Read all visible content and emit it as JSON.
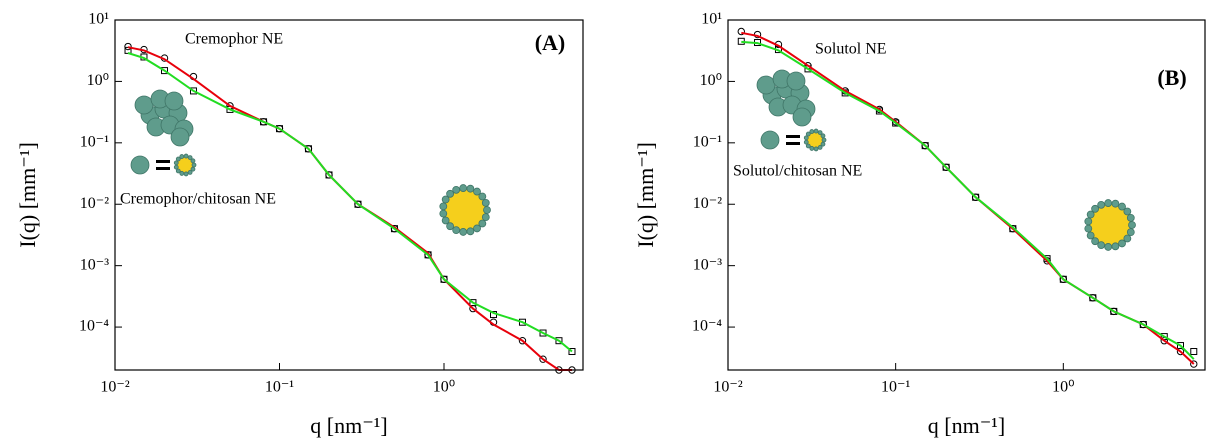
{
  "chart_data": [
    {
      "type": "scatter",
      "title": "(A)",
      "annotations": [
        "Cremophor NE",
        "Cremophor/chitosan NE"
      ],
      "xlabel": "q [nm⁻¹]",
      "ylabel": "I(q) [mm⁻¹]",
      "log_x": true,
      "log_y": true,
      "xlim": [
        0.01,
        7
      ],
      "ylim": [
        2e-05,
        10
      ],
      "xticks": [
        {
          "value": 0.01,
          "label": "10⁻²"
        },
        {
          "value": 0.1,
          "label": "10⁻¹"
        },
        {
          "value": 1,
          "label": "10⁰"
        }
      ],
      "yticks": [
        {
          "value": 0.0001,
          "label": "10⁻⁴"
        },
        {
          "value": 0.001,
          "label": "10⁻³"
        },
        {
          "value": 0.01,
          "label": "10⁻²"
        },
        {
          "value": 0.1,
          "label": "10⁻¹"
        },
        {
          "value": 1,
          "label": "10⁰"
        },
        {
          "value": 10,
          "label": "10¹"
        }
      ],
      "x": [
        0.012,
        0.015,
        0.02,
        0.03,
        0.05,
        0.08,
        0.1,
        0.15,
        0.2,
        0.3,
        0.5,
        0.8,
        1,
        1.5,
        2,
        3,
        4,
        5,
        6
      ],
      "series": [
        {
          "style": "circle",
          "color": "#000000",
          "values": [
            3.7,
            3.3,
            2.4,
            1.2,
            0.4,
            0.22,
            0.17,
            0.08,
            0.03,
            0.01,
            0.004,
            0.0015,
            0.0006,
            0.0002,
            0.00012,
            6e-05,
            3e-05,
            2e-05,
            2e-05
          ]
        },
        {
          "style": "square",
          "color": "#000000",
          "values": [
            3.2,
            2.5,
            1.5,
            0.7,
            0.35,
            0.22,
            0.17,
            0.08,
            0.03,
            0.01,
            0.004,
            0.0015,
            0.0006,
            0.00025,
            0.00016,
            0.00012,
            8e-05,
            6e-05,
            4e-05
          ]
        },
        {
          "style": "line",
          "color": "#e8000b",
          "values": [
            3.6,
            3.2,
            2.3,
            1.1,
            0.4,
            0.22,
            0.17,
            0.08,
            0.03,
            0.01,
            0.0042,
            0.0016,
            0.0006,
            0.0002,
            0.00011,
            6e-05,
            3e-05,
            2e-05,
            2e-05
          ]
        },
        {
          "style": "line",
          "color": "#22dd22",
          "values": [
            2.9,
            2.4,
            1.5,
            0.7,
            0.35,
            0.22,
            0.17,
            0.08,
            0.03,
            0.01,
            0.004,
            0.0015,
            0.0006,
            0.00025,
            0.00017,
            0.00012,
            8e-05,
            6e-05,
            4e-05
          ]
        }
      ]
    },
    {
      "type": "scatter",
      "title": "(B)",
      "annotations": [
        "Solutol NE",
        "Solutol/chitosan NE"
      ],
      "xlabel": "q [nm⁻¹]",
      "ylabel": "I(q) [mm⁻¹]",
      "log_x": true,
      "log_y": true,
      "xlim": [
        0.01,
        7
      ],
      "ylim": [
        2e-05,
        10
      ],
      "xticks": [
        {
          "value": 0.01,
          "label": "10⁻²"
        },
        {
          "value": 0.1,
          "label": "10⁻¹"
        },
        {
          "value": 1,
          "label": "10⁰"
        }
      ],
      "yticks": [
        {
          "value": 0.0001,
          "label": "10⁻⁴"
        },
        {
          "value": 0.001,
          "label": "10⁻³"
        },
        {
          "value": 0.01,
          "label": "10⁻²"
        },
        {
          "value": 0.1,
          "label": "10⁻¹"
        },
        {
          "value": 1,
          "label": "10⁰"
        },
        {
          "value": 10,
          "label": "10¹"
        }
      ],
      "x": [
        0.012,
        0.015,
        0.02,
        0.03,
        0.05,
        0.08,
        0.1,
        0.15,
        0.2,
        0.3,
        0.5,
        0.8,
        1,
        1.5,
        2,
        3,
        4,
        5,
        6
      ],
      "series": [
        {
          "style": "circle",
          "color": "#000000",
          "values": [
            6.5,
            5.8,
            4,
            1.8,
            0.7,
            0.35,
            0.22,
            0.09,
            0.04,
            0.013,
            0.004,
            0.0012,
            0.0006,
            0.0003,
            0.00018,
            0.00011,
            6e-05,
            4e-05,
            2.5e-05
          ]
        },
        {
          "style": "square",
          "color": "#000000",
          "values": [
            4.5,
            4.3,
            3.3,
            1.6,
            0.65,
            0.33,
            0.21,
            0.09,
            0.04,
            0.013,
            0.004,
            0.0013,
            0.0006,
            0.0003,
            0.00018,
            0.00011,
            7e-05,
            5e-05,
            4e-05
          ]
        },
        {
          "style": "line",
          "color": "#e8000b",
          "values": [
            6.2,
            5.5,
            3.8,
            1.8,
            0.7,
            0.35,
            0.22,
            0.09,
            0.04,
            0.013,
            0.004,
            0.0012,
            0.0006,
            0.0003,
            0.00018,
            0.00011,
            6e-05,
            4e-05,
            2.5e-05
          ]
        },
        {
          "style": "line",
          "color": "#22dd22",
          "values": [
            4.4,
            4.2,
            3.2,
            1.6,
            0.65,
            0.33,
            0.21,
            0.09,
            0.04,
            0.013,
            0.0042,
            0.0013,
            0.0006,
            0.0003,
            0.00018,
            0.00011,
            7e-05,
            5e-05,
            3e-05
          ]
        }
      ]
    }
  ]
}
